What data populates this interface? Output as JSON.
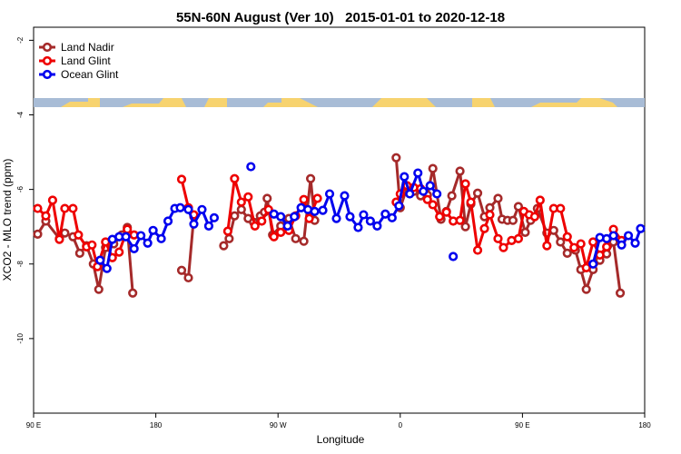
{
  "chart_data": {
    "type": "line",
    "title": "55N-60N August (Ver 10)   2015-01-01 to 2020-12-18",
    "x_label": "Longitude",
    "y_label": "XCO2 - MLO trend (ppm)",
    "xlim": [
      -270,
      180
    ],
    "xticks": [
      {
        "value": -270,
        "label": "90 E"
      },
      {
        "value": -180,
        "label": "180"
      },
      {
        "value": -90,
        "label": "90 W"
      },
      0,
      {
        "value": 90,
        "label": "90 E"
      },
      180
    ],
    "ylim": [
      -12,
      -1.65
    ],
    "yticks": [
      -10,
      -8,
      -6,
      -4,
      -2
    ],
    "legend": "top-left",
    "series": [
      {
        "name": "Land Nadir",
        "color": "#a52a2a",
        "x": [
          -267,
          -261,
          -251,
          -247,
          -241,
          -236,
          -231,
          -226,
          -222,
          -217,
          -211,
          -205,
          -201,
          -197,
          null,
          -161,
          -156,
          -152,
          null,
          -130,
          -126,
          -122,
          -117,
          -112,
          -108,
          -103,
          -100,
          -98,
          -94,
          -88,
          -82,
          -77,
          -71,
          -66,
          -63,
          null,
          -3,
          0,
          5,
          10,
          15,
          20,
          24,
          30,
          34,
          38,
          44,
          48,
          52,
          57,
          62,
          66,
          72,
          75,
          79,
          83,
          87,
          92,
          96,
          101,
          108,
          113,
          118,
          123,
          129,
          133,
          137,
          142,
          147,
          152,
          157,
          162
        ],
        "values": [
          -7.2,
          -6.85,
          -7.32,
          -7.17,
          -7.27,
          -7.71,
          -7.51,
          -8.0,
          -8.68,
          -7.56,
          -7.46,
          -7.22,
          -7.02,
          -8.78,
          null,
          -8.17,
          -8.37,
          -6.73,
          null,
          -7.51,
          -7.32,
          -6.71,
          -6.54,
          -6.78,
          -6.88,
          -6.71,
          -6.61,
          -6.24,
          -7.22,
          -6.98,
          -6.78,
          -7.32,
          -7.39,
          -5.71,
          -6.83,
          null,
          -5.15,
          -6.49,
          -5.95,
          -6.05,
          -6.17,
          -6.15,
          -5.44,
          -6.8,
          -6.59,
          -6.17,
          -5.51,
          -7.0,
          -6.39,
          -6.1,
          -6.73,
          -6.49,
          -6.24,
          -6.8,
          -6.83,
          -6.83,
          -6.46,
          -7.15,
          -6.83,
          -6.51,
          -7.17,
          -7.1,
          -7.41,
          -7.71,
          -7.63,
          -8.15,
          -8.68,
          -8.15,
          -7.9,
          -7.73,
          -7.41,
          -8.78
        ]
      },
      {
        "name": "Land Glint",
        "color": "#ee0000",
        "x": [
          -267,
          -261,
          -256,
          -251,
          -247,
          -241,
          -237,
          -231,
          -227,
          -223,
          -217,
          -212,
          -207,
          -201,
          -196,
          null,
          -161,
          -156,
          -152,
          null,
          -127,
          -122,
          -117,
          -112,
          -107,
          -102,
          -97,
          -93,
          -88,
          -82,
          -77,
          -71,
          -67,
          -61,
          null,
          -3,
          0,
          5,
          10,
          15,
          20,
          24,
          29,
          34,
          39,
          44,
          48,
          52,
          57,
          62,
          66,
          72,
          76,
          82,
          87,
          91,
          95,
          99,
          103,
          108,
          113,
          118,
          123,
          128,
          133,
          137,
          142,
          147,
          152,
          157,
          163
        ],
        "values": [
          -6.51,
          -6.71,
          -6.29,
          -7.34,
          -6.51,
          -6.51,
          -7.22,
          -7.54,
          -7.49,
          -8.07,
          -7.41,
          -7.83,
          -7.68,
          -7.07,
          -7.22,
          null,
          -5.73,
          -6.49,
          -6.68,
          null,
          -7.12,
          -5.71,
          -6.34,
          -6.2,
          -6.98,
          -6.85,
          -6.54,
          -7.27,
          -7.15,
          -7.1,
          -6.71,
          -6.27,
          -6.78,
          -6.24,
          null,
          -6.34,
          -6.12,
          -5.9,
          -5.95,
          -5.98,
          -6.27,
          -6.41,
          -6.73,
          -6.61,
          -6.85,
          -6.83,
          -5.85,
          -6.34,
          -7.63,
          -7.05,
          -6.68,
          -7.32,
          -7.56,
          -7.37,
          -7.32,
          -6.59,
          -6.68,
          -6.73,
          -6.29,
          -7.51,
          -6.51,
          -6.51,
          -7.27,
          -7.56,
          -7.46,
          -8.1,
          -7.41,
          -7.76,
          -7.54,
          -7.07,
          -7.37
        ]
      },
      {
        "name": "Ocean Glint",
        "color": "#0000ee",
        "x": [
          -221,
          -216,
          -212,
          -207,
          -202,
          -196,
          -191,
          -186,
          -182,
          -176,
          -171,
          -166,
          -162,
          -156,
          -152,
          -146,
          -141,
          -137,
          null,
          -110,
          null,
          -93,
          -88,
          -83,
          -78,
          -73,
          -68,
          -63,
          -57,
          -52,
          -47,
          -41,
          -37,
          -31,
          -27,
          -22,
          -17,
          -11,
          -6,
          -1,
          3,
          7,
          13,
          17,
          22,
          27,
          null,
          39,
          null,
          142,
          147,
          152,
          157,
          163,
          168,
          173,
          177
        ],
        "values": [
          -7.9,
          -8.12,
          -7.34,
          -7.27,
          -7.27,
          -7.59,
          -7.24,
          -7.44,
          -7.1,
          -7.32,
          -6.85,
          -6.51,
          -6.49,
          -6.54,
          -6.93,
          -6.54,
          -6.98,
          -6.76,
          null,
          -5.39,
          null,
          -6.66,
          -6.73,
          -6.98,
          -6.73,
          -6.49,
          -6.54,
          -6.59,
          -6.56,
          -6.12,
          -6.78,
          -6.17,
          -6.73,
          -7.02,
          -6.68,
          -6.85,
          -6.98,
          -6.66,
          -6.76,
          -6.44,
          -5.66,
          -6.12,
          -5.56,
          -6.05,
          -5.9,
          -6.12,
          null,
          -7.8,
          null,
          -8.0,
          -7.29,
          -7.32,
          -7.24,
          -7.49,
          -7.24,
          -7.44,
          -7.05
        ]
      }
    ]
  }
}
